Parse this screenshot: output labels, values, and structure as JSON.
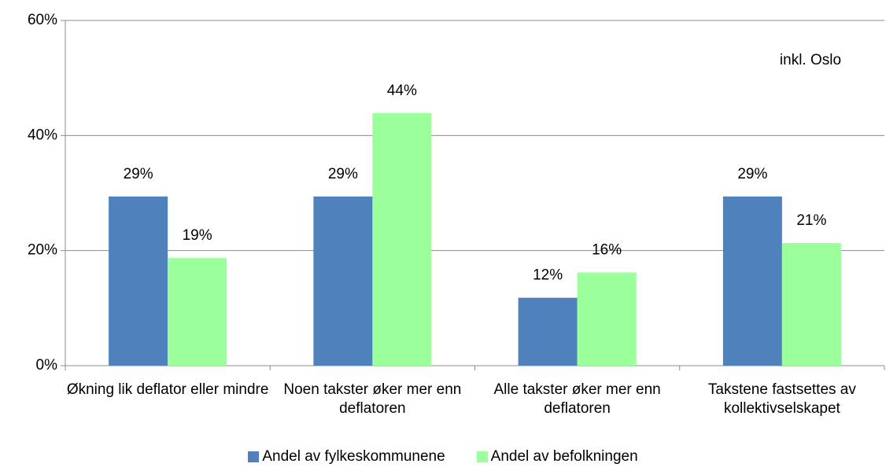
{
  "chart_data": {
    "type": "bar",
    "annotation": "inkl. Oslo",
    "categories": [
      "Økning lik deflator eller mindre",
      "Noen takster øker mer enn deflatoren",
      "Alle takster øker mer enn deflatoren",
      "Takstene fastsettes av kollektivselskapet"
    ],
    "series": [
      {
        "name": "Andel av fylkeskommunene",
        "color": "#4f81bd",
        "values": [
          29.4,
          29.4,
          11.8,
          29.4
        ],
        "value_labels": [
          "29%",
          "29%",
          "12%",
          "29%"
        ]
      },
      {
        "name": "Andel av befolkningen",
        "color": "#9bff9b",
        "values": [
          18.7,
          43.9,
          16.2,
          21.3
        ],
        "value_labels": [
          "19%",
          "44%",
          "16%",
          "21%"
        ]
      }
    ],
    "ylim": [
      0,
      60
    ],
    "yticks": [
      {
        "value": 0,
        "label": "0%"
      },
      {
        "value": 20,
        "label": "20%"
      },
      {
        "value": 40,
        "label": "40%"
      },
      {
        "value": 60,
        "label": "60%"
      }
    ],
    "grid": true,
    "legend": "bottom"
  }
}
